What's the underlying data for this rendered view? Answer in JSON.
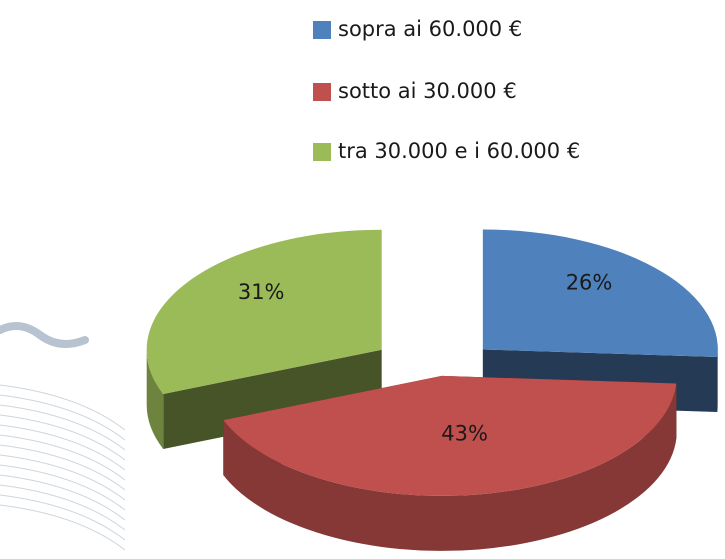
{
  "chart_data": {
    "type": "pie",
    "categories": [
      "sopra ai 60.000 €",
      "sotto ai 30.000 €",
      "tra 30.000 e i 60.000 €"
    ],
    "values": [
      26,
      43,
      31
    ],
    "value_labels": [
      "26%",
      "43%",
      "31%"
    ],
    "colors": [
      "#4f81bd",
      "#c0504d",
      "#9bbb59"
    ],
    "legend": "top"
  }
}
